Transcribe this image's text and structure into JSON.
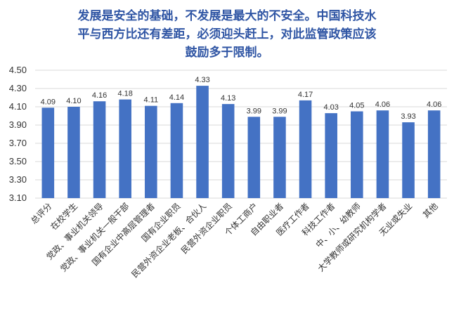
{
  "title_lines": [
    "发展是安全的基础，不发展是最大的不安全。中国科技水",
    "平与西方比还有差距，必须迎头赶上，对此监管政策应该",
    "鼓励多于限制。"
  ],
  "colors": {
    "bar": "#4472c4",
    "title": "#2f55a4",
    "grid": "#d9d9d9"
  },
  "chart_data": {
    "type": "bar",
    "categories": [
      "总评分",
      "在校学生",
      "党政、事业机关领导",
      "党政、事业机关一般干部",
      "国有企业中高层管理者",
      "国有企业职员",
      "民营外资企业老板、合伙人",
      "民营外资企业职员",
      "个体工商户",
      "自由职业者",
      "医疗工作者",
      "科技工作者",
      "中、小、幼教师",
      "大学教师或研究机构学者",
      "无业或失业",
      "其他"
    ],
    "values": [
      4.09,
      4.1,
      4.16,
      4.18,
      4.11,
      4.14,
      4.33,
      4.13,
      3.99,
      3.99,
      4.17,
      4.03,
      4.05,
      4.06,
      3.93,
      4.06
    ],
    "value_labels": [
      "4.09",
      "4.10",
      "4.16",
      "4.18",
      "4.11",
      "4.14",
      "4.33",
      "4.13",
      "3.99",
      "3.99",
      "4.17",
      "4.03",
      "4.05",
      "4.06",
      "3.93",
      "4.06"
    ],
    "yticks": [
      "4.50",
      "4.30",
      "4.10",
      "3.90",
      "3.70",
      "3.50",
      "3.30",
      "3.10"
    ],
    "ylim": [
      3.1,
      4.5
    ],
    "grid": true,
    "legend": "none"
  }
}
